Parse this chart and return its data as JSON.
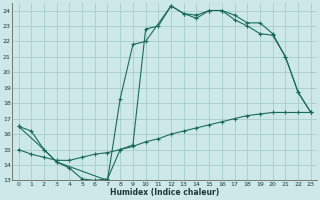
{
  "xlabel": "Humidex (Indice chaleur)",
  "bg_color": "#cce8e8",
  "grid_color": "#aacccc",
  "line_color": "#1a6b5a",
  "xlim": [
    -0.5,
    23.5
  ],
  "ylim": [
    13,
    24.5
  ],
  "xticks": [
    0,
    1,
    2,
    3,
    4,
    5,
    6,
    7,
    8,
    9,
    10,
    11,
    12,
    13,
    14,
    15,
    16,
    17,
    18,
    19,
    20,
    21,
    22,
    23
  ],
  "yticks": [
    13,
    14,
    15,
    16,
    17,
    18,
    19,
    20,
    21,
    22,
    23,
    24
  ],
  "curve1_x": [
    0,
    1,
    2,
    3,
    4,
    5,
    6,
    7,
    8,
    9,
    10,
    11,
    12,
    13,
    14,
    15,
    16,
    17,
    18,
    19,
    20,
    21,
    22,
    23
  ],
  "curve1_y": [
    16.5,
    16.2,
    15.0,
    14.2,
    13.8,
    13.1,
    13.0,
    13.1,
    15.0,
    15.3,
    22.8,
    23.0,
    24.3,
    23.8,
    23.7,
    24.0,
    24.0,
    23.7,
    23.2,
    23.2,
    22.5,
    21.0,
    18.7,
    17.4
  ],
  "curve2_x": [
    0,
    2,
    3,
    7,
    8,
    9,
    10,
    12,
    13,
    14,
    15,
    16,
    17,
    18,
    19,
    20,
    21,
    22,
    23
  ],
  "curve2_y": [
    16.5,
    15.0,
    14.2,
    13.0,
    18.3,
    21.8,
    22.0,
    24.3,
    23.8,
    23.5,
    24.0,
    24.0,
    23.4,
    23.0,
    22.5,
    22.4,
    21.0,
    18.7,
    17.4
  ],
  "curve3_x": [
    0,
    1,
    2,
    3,
    4,
    5,
    6,
    7,
    8,
    9,
    10,
    11,
    12,
    13,
    14,
    15,
    16,
    17,
    18,
    19,
    20,
    21,
    22,
    23
  ],
  "curve3_y": [
    15.0,
    14.7,
    14.5,
    14.3,
    14.3,
    14.5,
    14.7,
    14.8,
    15.0,
    15.2,
    15.5,
    15.7,
    16.0,
    16.2,
    16.4,
    16.6,
    16.8,
    17.0,
    17.2,
    17.3,
    17.4,
    17.4,
    17.4,
    17.4
  ]
}
